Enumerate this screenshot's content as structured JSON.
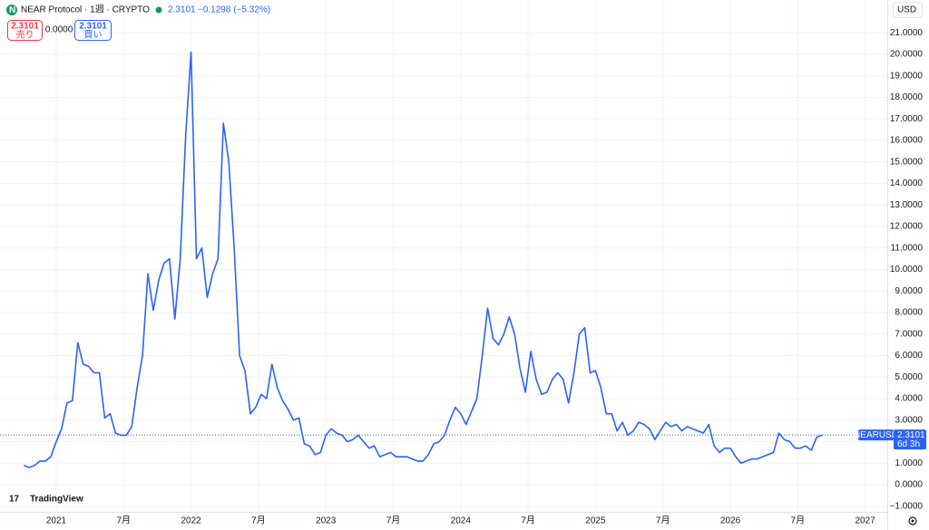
{
  "chart_data": {
    "type": "line",
    "title": "NEAR Protocol · 1週 · CRYPTO",
    "header_price": "2.3101",
    "header_change": "−0.1298 (−5.32%)",
    "sell_price": "2.3101",
    "sell_label": "売り",
    "spread": "0.0000",
    "buy_price": "2.3101",
    "buy_label": "買い",
    "currency": "USD",
    "price_tag_name": "NEARUSD",
    "price_tag_value": "2.3101",
    "countdown": "6d 3h",
    "brand": "TradingView",
    "grid": true,
    "xlim": [
      2020.583,
      2027.164
    ],
    "ylim": [
      -1.26,
      22.52
    ],
    "xticks": [
      {
        "value": 2021,
        "label": "2021"
      },
      {
        "value": 2021.5,
        "label": "7月"
      },
      {
        "value": 2022,
        "label": "2022"
      },
      {
        "value": 2022.5,
        "label": "7月"
      },
      {
        "value": 2023,
        "label": "2023"
      },
      {
        "value": 2023.5,
        "label": "7月"
      },
      {
        "value": 2024,
        "label": "2024"
      },
      {
        "value": 2024.5,
        "label": "7月"
      },
      {
        "value": 2025,
        "label": "2025"
      },
      {
        "value": 2025.5,
        "label": "7月"
      },
      {
        "value": 2026,
        "label": "2026"
      },
      {
        "value": 2026.5,
        "label": "7月"
      },
      {
        "value": 2027,
        "label": "2027"
      }
    ],
    "yticks": [
      {
        "value": -1,
        "label": "−1.0000"
      },
      {
        "value": 0,
        "label": "0.0000"
      },
      {
        "value": 1,
        "label": "1.0000"
      },
      {
        "value": 2,
        "label": "2.0000"
      },
      {
        "value": 3,
        "label": "3.0000"
      },
      {
        "value": 4,
        "label": "4.0000"
      },
      {
        "value": 5,
        "label": "5.0000"
      },
      {
        "value": 6,
        "label": "6.0000"
      },
      {
        "value": 7,
        "label": "7.0000"
      },
      {
        "value": 8,
        "label": "8.0000"
      },
      {
        "value": 9,
        "label": "9.0000"
      },
      {
        "value": 10,
        "label": "10.0000"
      },
      {
        "value": 11,
        "label": "11.0000"
      },
      {
        "value": 12,
        "label": "12.0000"
      },
      {
        "value": 13,
        "label": "13.0000"
      },
      {
        "value": 14,
        "label": "14.0000"
      },
      {
        "value": 15,
        "label": "15.0000"
      },
      {
        "value": 16,
        "label": "16.0000"
      },
      {
        "value": 17,
        "label": "17.0000"
      },
      {
        "value": 18,
        "label": "18.0000"
      },
      {
        "value": 19,
        "label": "19.0000"
      },
      {
        "value": 20,
        "label": "20.0000"
      },
      {
        "value": 21,
        "label": "21.0000"
      }
    ],
    "x": [
      2020.76,
      2020.8,
      2020.84,
      2020.88,
      2020.92,
      2020.96,
      2021,
      2021.04,
      2021.08,
      2021.12,
      2021.16,
      2021.2,
      2021.24,
      2021.28,
      2021.32,
      2021.36,
      2021.4,
      2021.44,
      2021.48,
      2021.52,
      2021.56,
      2021.6,
      2021.64,
      2021.68,
      2021.72,
      2021.76,
      2021.8,
      2021.84,
      2021.88,
      2021.92,
      2021.96,
      2022,
      2022.04,
      2022.08,
      2022.12,
      2022.16,
      2022.2,
      2022.24,
      2022.28,
      2022.32,
      2022.36,
      2022.4,
      2022.44,
      2022.48,
      2022.52,
      2022.56,
      2022.6,
      2022.64,
      2022.68,
      2022.72,
      2022.76,
      2022.8,
      2022.84,
      2022.88,
      2022.92,
      2022.96,
      2023,
      2023.04,
      2023.08,
      2023.12,
      2023.16,
      2023.2,
      2023.24,
      2023.28,
      2023.32,
      2023.36,
      2023.4,
      2023.44,
      2023.48,
      2023.52,
      2023.56,
      2023.6,
      2023.64,
      2023.68,
      2023.72,
      2023.76,
      2023.8,
      2023.84,
      2023.88,
      2023.92,
      2023.96,
      2024,
      2024.04,
      2024.08,
      2024.12,
      2024.16,
      2024.2,
      2024.24,
      2024.28,
      2024.32,
      2024.36,
      2024.4,
      2024.44,
      2024.48,
      2024.52,
      2024.56,
      2024.6,
      2024.64,
      2024.68,
      2024.72,
      2024.76,
      2024.8,
      2024.84,
      2024.88,
      2024.92,
      2024.96,
      2025,
      2025.04,
      2025.08,
      2025.12,
      2025.16,
      2025.2,
      2025.24,
      2025.28,
      2025.32,
      2025.36,
      2025.4,
      2025.44,
      2025.48,
      2025.52,
      2025.56,
      2025.6,
      2025.64,
      2025.68,
      2025.72,
      2025.76,
      2025.8,
      2025.84,
      2025.88,
      2025.92,
      2025.96,
      2026,
      2026.04,
      2026.08,
      2026.12,
      2026.16,
      2026.2,
      2026.24,
      2026.28,
      2026.32,
      2026.36,
      2026.4,
      2026.44,
      2026.48,
      2026.52,
      2026.56,
      2026.6,
      2026.64,
      2026.68
    ],
    "series": [
      {
        "name": "NEARUSD",
        "color": "#2962ff",
        "values": [
          0.9,
          0.8,
          0.9,
          1.1,
          1.1,
          1.3,
          2.0,
          2.6,
          3.8,
          3.9,
          6.6,
          5.6,
          5.5,
          5.2,
          5.2,
          3.1,
          3.3,
          2.4,
          2.3,
          2.3,
          2.7,
          4.5,
          6.0,
          9.8,
          8.1,
          9.5,
          10.3,
          10.5,
          7.7,
          10.5,
          16.2,
          20.1,
          10.5,
          11.0,
          8.7,
          9.8,
          10.5,
          16.8,
          15.0,
          11.0,
          6.0,
          5.3,
          3.3,
          3.6,
          4.2,
          4.0,
          5.6,
          4.5,
          3.9,
          3.5,
          3.0,
          3.1,
          1.9,
          1.8,
          1.4,
          1.5,
          2.3,
          2.6,
          2.4,
          2.3,
          2.0,
          2.1,
          2.3,
          2.0,
          1.7,
          1.8,
          1.3,
          1.4,
          1.5,
          1.3,
          1.3,
          1.3,
          1.2,
          1.1,
          1.1,
          1.4,
          1.9,
          2.0,
          2.3,
          3.0,
          3.6,
          3.3,
          2.8,
          3.4,
          4.0,
          6.0,
          8.2,
          6.8,
          6.5,
          7.0,
          7.8,
          7.0,
          5.4,
          4.3,
          6.2,
          4.9,
          4.2,
          4.3,
          4.9,
          5.2,
          4.9,
          3.8,
          5.2,
          7.0,
          7.3,
          5.2,
          5.3,
          4.5,
          3.3,
          3.3,
          2.5,
          2.9,
          2.3,
          2.5,
          2.9,
          2.8,
          2.6,
          2.1,
          2.5,
          2.9,
          2.7,
          2.8,
          2.5,
          2.7,
          2.6,
          2.5,
          2.4,
          2.8,
          1.8,
          1.5,
          1.7,
          1.7,
          1.3,
          1.0,
          1.1,
          1.2,
          1.2,
          1.3,
          1.4,
          1.5,
          2.4,
          2.1,
          2.0,
          1.7,
          1.7,
          1.8,
          1.6,
          2.2,
          2.3101
        ]
      }
    ]
  }
}
